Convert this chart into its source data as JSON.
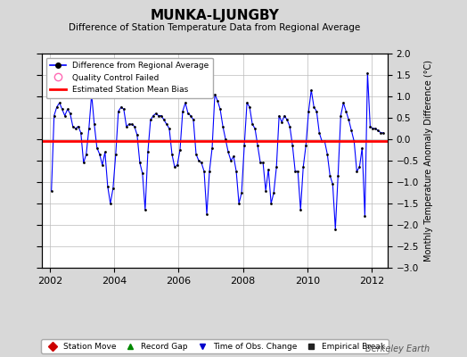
{
  "title": "MUNKA-LJUNGBY",
  "subtitle": "Difference of Station Temperature Data from Regional Average",
  "ylabel_right": "Monthly Temperature Anomaly Difference (°C)",
  "bias_line": -0.05,
  "xlim": [
    2001.75,
    2012.5
  ],
  "ylim": [
    -3.0,
    2.0
  ],
  "yticks": [
    -3,
    -2.5,
    -2,
    -1.5,
    -1,
    -0.5,
    0,
    0.5,
    1,
    1.5,
    2
  ],
  "xticks": [
    2002,
    2004,
    2006,
    2008,
    2010,
    2012
  ],
  "background_color": "#d8d8d8",
  "plot_bg_color": "#ffffff",
  "line_color": "#0000ff",
  "marker_color": "#000000",
  "bias_color": "#ff0000",
  "watermark": "Berkeley Earth",
  "data": [
    [
      2002.042,
      -1.2
    ],
    [
      2002.125,
      0.55
    ],
    [
      2002.208,
      0.75
    ],
    [
      2002.292,
      0.85
    ],
    [
      2002.375,
      0.7
    ],
    [
      2002.458,
      0.55
    ],
    [
      2002.542,
      0.7
    ],
    [
      2002.625,
      0.6
    ],
    [
      2002.708,
      0.3
    ],
    [
      2002.792,
      0.25
    ],
    [
      2002.875,
      0.3
    ],
    [
      2002.958,
      0.15
    ],
    [
      2003.042,
      -0.55
    ],
    [
      2003.125,
      -0.35
    ],
    [
      2003.208,
      0.25
    ],
    [
      2003.292,
      1.05
    ],
    [
      2003.375,
      0.35
    ],
    [
      2003.458,
      -0.2
    ],
    [
      2003.542,
      -0.35
    ],
    [
      2003.625,
      -0.6
    ],
    [
      2003.708,
      -0.3
    ],
    [
      2003.792,
      -1.1
    ],
    [
      2003.875,
      -1.5
    ],
    [
      2003.958,
      -1.15
    ],
    [
      2004.042,
      -0.35
    ],
    [
      2004.125,
      0.65
    ],
    [
      2004.208,
      0.75
    ],
    [
      2004.292,
      0.7
    ],
    [
      2004.375,
      0.3
    ],
    [
      2004.458,
      0.35
    ],
    [
      2004.542,
      0.35
    ],
    [
      2004.625,
      0.3
    ],
    [
      2004.708,
      0.1
    ],
    [
      2004.792,
      -0.55
    ],
    [
      2004.875,
      -0.8
    ],
    [
      2004.958,
      -1.65
    ],
    [
      2005.042,
      -0.3
    ],
    [
      2005.125,
      0.45
    ],
    [
      2005.208,
      0.55
    ],
    [
      2005.292,
      0.6
    ],
    [
      2005.375,
      0.55
    ],
    [
      2005.458,
      0.55
    ],
    [
      2005.542,
      0.45
    ],
    [
      2005.625,
      0.35
    ],
    [
      2005.708,
      0.25
    ],
    [
      2005.792,
      -0.35
    ],
    [
      2005.875,
      -0.65
    ],
    [
      2005.958,
      -0.6
    ],
    [
      2006.042,
      -0.25
    ],
    [
      2006.125,
      0.65
    ],
    [
      2006.208,
      0.85
    ],
    [
      2006.292,
      0.6
    ],
    [
      2006.375,
      0.55
    ],
    [
      2006.458,
      0.45
    ],
    [
      2006.542,
      -0.35
    ],
    [
      2006.625,
      -0.5
    ],
    [
      2006.708,
      -0.55
    ],
    [
      2006.792,
      -0.75
    ],
    [
      2006.875,
      -1.75
    ],
    [
      2006.958,
      -0.75
    ],
    [
      2007.042,
      -0.2
    ],
    [
      2007.125,
      1.05
    ],
    [
      2007.208,
      0.9
    ],
    [
      2007.292,
      0.7
    ],
    [
      2007.375,
      0.3
    ],
    [
      2007.458,
      0.0
    ],
    [
      2007.542,
      -0.3
    ],
    [
      2007.625,
      -0.5
    ],
    [
      2007.708,
      -0.4
    ],
    [
      2007.792,
      -0.75
    ],
    [
      2007.875,
      -1.5
    ],
    [
      2007.958,
      -1.25
    ],
    [
      2008.042,
      -0.15
    ],
    [
      2008.125,
      0.85
    ],
    [
      2008.208,
      0.75
    ],
    [
      2008.292,
      0.35
    ],
    [
      2008.375,
      0.25
    ],
    [
      2008.458,
      -0.15
    ],
    [
      2008.542,
      -0.55
    ],
    [
      2008.625,
      -0.55
    ],
    [
      2008.708,
      -1.2
    ],
    [
      2008.792,
      -0.7
    ],
    [
      2008.875,
      -1.5
    ],
    [
      2008.958,
      -1.25
    ],
    [
      2009.042,
      -0.65
    ],
    [
      2009.125,
      0.55
    ],
    [
      2009.208,
      0.4
    ],
    [
      2009.292,
      0.55
    ],
    [
      2009.375,
      0.45
    ],
    [
      2009.458,
      0.3
    ],
    [
      2009.542,
      -0.15
    ],
    [
      2009.625,
      -0.75
    ],
    [
      2009.708,
      -0.75
    ],
    [
      2009.792,
      -1.65
    ],
    [
      2009.875,
      -0.65
    ],
    [
      2009.958,
      -0.15
    ],
    [
      2010.042,
      0.65
    ],
    [
      2010.125,
      1.15
    ],
    [
      2010.208,
      0.75
    ],
    [
      2010.292,
      0.65
    ],
    [
      2010.375,
      0.15
    ],
    [
      2010.458,
      -0.05
    ],
    [
      2010.542,
      -0.05
    ],
    [
      2010.625,
      -0.35
    ],
    [
      2010.708,
      -0.85
    ],
    [
      2010.792,
      -1.05
    ],
    [
      2010.875,
      -2.1
    ],
    [
      2010.958,
      -0.85
    ],
    [
      2011.042,
      0.55
    ],
    [
      2011.125,
      0.85
    ],
    [
      2011.208,
      0.65
    ],
    [
      2011.292,
      0.45
    ],
    [
      2011.375,
      0.2
    ],
    [
      2011.458,
      -0.05
    ],
    [
      2011.542,
      -0.75
    ],
    [
      2011.625,
      -0.65
    ],
    [
      2011.708,
      -0.2
    ],
    [
      2011.792,
      -1.8
    ],
    [
      2011.875,
      1.55
    ],
    [
      2011.958,
      0.3
    ],
    [
      2012.042,
      0.25
    ],
    [
      2012.125,
      0.25
    ],
    [
      2012.208,
      0.2
    ],
    [
      2012.292,
      0.15
    ],
    [
      2012.375,
      0.15
    ]
  ]
}
